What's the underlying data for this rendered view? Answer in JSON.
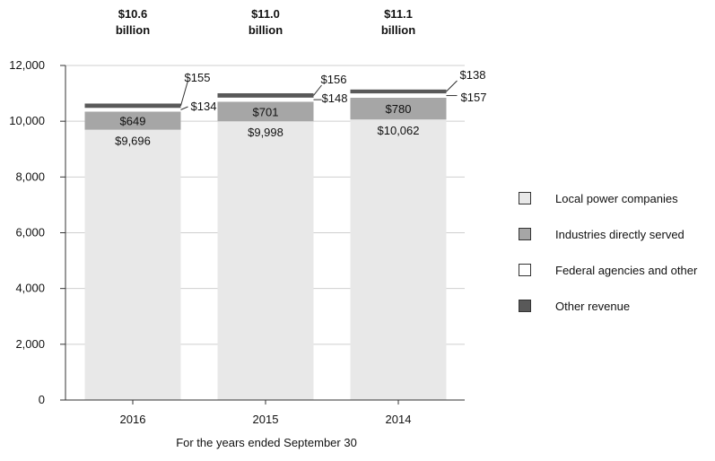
{
  "chart_data": {
    "type": "bar",
    "stacked": true,
    "categories": [
      "2016",
      "2015",
      "2014"
    ],
    "totals": [
      {
        "amount": "$10.6",
        "unit": "billion"
      },
      {
        "amount": "$11.0",
        "unit": "billion"
      },
      {
        "amount": "$11.1",
        "unit": "billion"
      }
    ],
    "series": [
      {
        "name": "Local power companies",
        "values": [
          9696,
          9998,
          10062
        ],
        "labels": [
          "$9,696",
          "$9,998",
          "$10,062"
        ],
        "color": "#e8e8e8"
      },
      {
        "name": "Industries directly served",
        "values": [
          649,
          701,
          780
        ],
        "labels": [
          "$649",
          "$701",
          "$780"
        ],
        "color": "#a6a6a6"
      },
      {
        "name": "Federal agencies and other",
        "values": [
          134,
          148,
          157
        ],
        "labels": [
          "$134",
          "$148",
          "$157"
        ],
        "color": "#ffffff"
      },
      {
        "name": "Other revenue",
        "values": [
          155,
          156,
          138
        ],
        "labels": [
          "$155",
          "$156",
          "$138"
        ],
        "color": "#595959"
      }
    ],
    "yticks": [
      "0",
      "2,000",
      "4,000",
      "6,000",
      "8,000",
      "10,000",
      "12,000"
    ],
    "ylim": [
      0,
      12000
    ],
    "xlabel": "For the years ended September 30",
    "ylabel": "",
    "grid": true,
    "legend_position": "right"
  }
}
